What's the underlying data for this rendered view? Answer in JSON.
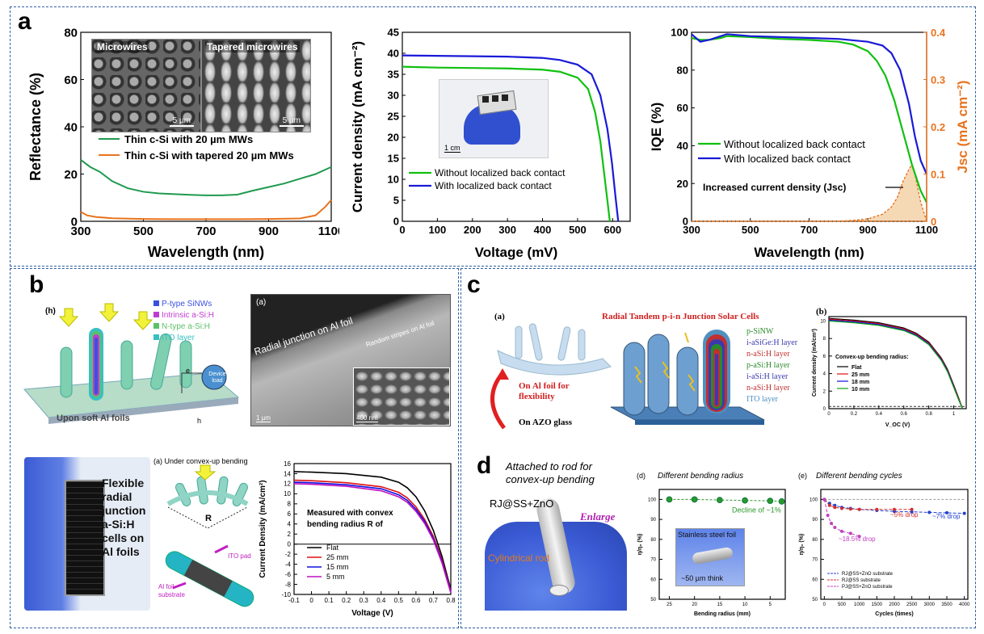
{
  "labels": {
    "a": "a",
    "b": "b",
    "c": "c",
    "d": "d"
  },
  "panel_a": {
    "inset_left": "Microwires",
    "inset_right": "Tapered microwires",
    "scale": "5 µm",
    "inset_photo_scale": "1 cm"
  },
  "panel_b": {
    "h_label": "(h)",
    "legend": [
      "P-type SiNWs",
      "Intrinsic a-Si:H",
      "N-type a-Si:H",
      "ITO layer"
    ],
    "legend_colors": [
      "#3b4fe0",
      "#c03cd0",
      "#5cc06a",
      "#38c0c0"
    ],
    "device_load": "Device load",
    "e_label": "e",
    "h2_label": "h",
    "soft_al": "Upon soft Al foils",
    "sem_label": "(a)",
    "sem_text1": "Radial junction on Al foil",
    "sem_text2": "Random stripes on Al foil",
    "sem_scale1": "1 µm",
    "sem_scale2": "400 nm",
    "photo_text": [
      "Flexible",
      "radial",
      "junction",
      "a-Si:H",
      "cells on",
      "Al foils"
    ],
    "bend_title": "(a) Under convex-up bending",
    "bend_R": "R",
    "ito_pad": "ITO pad",
    "al_sub": [
      "Al foil",
      "substrate"
    ]
  },
  "panel_c": {
    "label_a": "(a)",
    "title": "Radial Tandem p-i-n Junction Solar Cells",
    "layers": [
      "p-SiNW",
      "i-aSiGe:H layer",
      "n-aSi:H layer",
      "p-aSi:H layer",
      "i-aSi:H layer",
      "n-aSi:H layer",
      "ITO layer"
    ],
    "layer_colors": [
      "#2a8a2a",
      "#3a3ab0",
      "#c03030",
      "#2a8a2a",
      "#3a3ab0",
      "#c03030",
      "#5090c0"
    ],
    "on_al": [
      "On Al foil for",
      "flexibility"
    ],
    "on_azo": "On AZO glass",
    "label_b": "(b)"
  },
  "panel_d": {
    "attached": [
      "Attached to rod for",
      "convex-up bending"
    ],
    "rj": "RJ@SS+ZnO",
    "enlarge": "Enlarge",
    "rod": "Cylindrical rod",
    "inset_text1": "Stainless steel foil",
    "inset_text2": "~50 µm think"
  },
  "chart_data": [
    {
      "id": "a1",
      "type": "line",
      "title": "",
      "xlabel": "Wavelength (nm)",
      "ylabel": "Reflectance (%)",
      "xlim": [
        300,
        1100
      ],
      "ylim": [
        0,
        80
      ],
      "xticks": [
        300,
        500,
        700,
        900,
        1100
      ],
      "yticks": [
        0,
        20,
        40,
        60,
        80
      ],
      "series": [
        {
          "name": "Thin c-Si with 20 µm MWs",
          "color": "#1f9a4f",
          "x": [
            300,
            330,
            360,
            400,
            450,
            500,
            550,
            600,
            650,
            700,
            750,
            800,
            850,
            900,
            950,
            1000,
            1050,
            1100
          ],
          "y": [
            26,
            23,
            21,
            17,
            14,
            12.5,
            11.8,
            11.5,
            11.2,
            11,
            11,
            11.3,
            13,
            14.5,
            16,
            18,
            20,
            23
          ]
        },
        {
          "name": "Thin c-Si with tapered 20 µm MWs",
          "color": "#e8731e",
          "x": [
            300,
            320,
            350,
            400,
            500,
            600,
            700,
            800,
            900,
            1000,
            1050,
            1080,
            1100
          ],
          "y": [
            4,
            2.5,
            1.8,
            1.3,
            1,
            0.9,
            0.9,
            0.9,
            1,
            1.2,
            2.5,
            6,
            9
          ]
        }
      ]
    },
    {
      "id": "a2",
      "type": "line",
      "title": "",
      "xlabel": "Voltage (mV)",
      "ylabel": "Current density (mA cm⁻²)",
      "xlim": [
        0,
        650
      ],
      "ylim": [
        0,
        45
      ],
      "xticks": [
        0,
        100,
        200,
        300,
        400,
        500,
        600
      ],
      "yticks": [
        0,
        5,
        10,
        15,
        20,
        25,
        30,
        35,
        40,
        45
      ],
      "series": [
        {
          "name": "Without localized back contact",
          "color": "#10c010",
          "x": [
            0,
            100,
            200,
            300,
            400,
            450,
            500,
            530,
            550,
            565,
            575,
            585,
            592
          ],
          "y": [
            36.8,
            36.6,
            36.5,
            36.4,
            36.1,
            35.6,
            34.2,
            31.5,
            26,
            19,
            12,
            5,
            0
          ]
        },
        {
          "name": "With localized back contact",
          "color": "#1a1ad8",
          "x": [
            0,
            100,
            200,
            300,
            400,
            450,
            500,
            540,
            565,
            585,
            598,
            608,
            616
          ],
          "y": [
            39.5,
            39.4,
            39.3,
            39.2,
            38.9,
            38.4,
            37.3,
            35,
            30,
            22,
            14,
            6,
            0
          ]
        }
      ]
    },
    {
      "id": "a3",
      "type": "line",
      "title": "",
      "xlabel": "Wavelength (nm)",
      "ylabel": "IQE (%)",
      "y2label": "Jsc (mA cm⁻²)",
      "annotation": "Increased current density (Jsc)",
      "xlim": [
        300,
        1100
      ],
      "ylim": [
        0,
        100
      ],
      "y2lim": [
        0,
        0.4
      ],
      "xticks": [
        300,
        500,
        700,
        900,
        1100
      ],
      "yticks": [
        0,
        20,
        40,
        60,
        80,
        100
      ],
      "y2ticks": [
        0,
        0.1,
        0.2,
        0.3,
        0.4
      ],
      "series": [
        {
          "name": "Without localized back contact",
          "color": "#10c010",
          "x": [
            300,
            330,
            360,
            400,
            420,
            500,
            600,
            700,
            800,
            850,
            900,
            930,
            960,
            990,
            1020,
            1050,
            1080,
            1100
          ],
          "y": [
            97,
            96,
            96,
            97,
            98,
            97.5,
            96.5,
            96,
            95,
            93.5,
            90,
            85,
            77,
            64,
            47,
            30,
            16,
            10
          ]
        },
        {
          "name": "With localized back contact",
          "color": "#1a1ad8",
          "x": [
            300,
            330,
            360,
            400,
            420,
            500,
            600,
            700,
            800,
            900,
            950,
            980,
            1010,
            1040,
            1060,
            1080,
            1100
          ],
          "y": [
            99,
            95,
            96,
            98,
            99,
            98,
            97.5,
            97,
            96.5,
            95,
            93,
            89,
            80,
            62,
            45,
            32,
            25
          ]
        },
        {
          "name": "Jsc difference",
          "color": "#e8731e",
          "axis": "y2",
          "x": [
            300,
            500,
            800,
            850,
            900,
            950,
            980,
            1000,
            1020,
            1040,
            1050,
            1060,
            1080,
            1100
          ],
          "y": [
            0,
            0,
            0,
            0.002,
            0.005,
            0.015,
            0.03,
            0.05,
            0.085,
            0.11,
            0.12,
            0.1,
            0.04,
            0
          ]
        }
      ]
    },
    {
      "id": "b1",
      "type": "line",
      "title": "",
      "xlabel": "Voltage (V)",
      "ylabel": "Current Density (mA/cm²)",
      "annotation": [
        "Measured with convex",
        "bending radius R of"
      ],
      "xlim": [
        -0.1,
        0.8
      ],
      "ylim": [
        -10,
        16
      ],
      "xticks": [
        -0.1,
        0,
        0.1,
        0.2,
        0.3,
        0.4,
        0.5,
        0.6,
        0.7,
        0.8
      ],
      "yticks": [
        -10,
        -8,
        -6,
        -4,
        -2,
        0,
        2,
        4,
        6,
        8,
        10,
        12,
        14,
        16
      ],
      "series": [
        {
          "name": "Flat",
          "color": "#000000",
          "x": [
            -0.1,
            0,
            0.2,
            0.4,
            0.5,
            0.55,
            0.6,
            0.65,
            0.7,
            0.75,
            0.8
          ],
          "y": [
            14.4,
            14.3,
            14,
            13.3,
            12.3,
            11.2,
            9.4,
            6.6,
            2.7,
            -2.5,
            -9
          ]
        },
        {
          "name": "25 mm",
          "color": "#e01010",
          "x": [
            -0.1,
            0,
            0.2,
            0.4,
            0.5,
            0.55,
            0.6,
            0.65,
            0.7,
            0.75,
            0.8
          ],
          "y": [
            12.7,
            12.6,
            12.2,
            11.4,
            10.3,
            9.2,
            7.4,
            4.9,
            1.5,
            -3.2,
            -9.3
          ]
        },
        {
          "name": "15 mm",
          "color": "#1010e0",
          "x": [
            -0.1,
            0,
            0.2,
            0.4,
            0.5,
            0.55,
            0.6,
            0.65,
            0.7,
            0.75,
            0.8
          ],
          "y": [
            12.3,
            12.2,
            11.8,
            11,
            9.8,
            8.7,
            6.9,
            4.5,
            1.1,
            -3.5,
            -9.5
          ]
        },
        {
          "name": "5 mm",
          "color": "#c010c0",
          "x": [
            -0.1,
            0,
            0.2,
            0.4,
            0.5,
            0.55,
            0.6,
            0.65,
            0.7,
            0.75,
            0.8
          ],
          "y": [
            12,
            11.9,
            11.5,
            10.6,
            9.4,
            8.3,
            6.5,
            4.1,
            0.8,
            -3.8,
            -9.7
          ]
        }
      ]
    },
    {
      "id": "c1",
      "type": "line",
      "title": "",
      "xlabel": "V_OC (V)",
      "ylabel": "Current density (mA/cm²)",
      "legend_title": "Convex-up bending radius:",
      "xlim": [
        0,
        1.1
      ],
      "ylim": [
        0,
        10.5
      ],
      "xticks": [
        0,
        0.2,
        0.4,
        0.6,
        0.8,
        1.0
      ],
      "yticks": [
        0,
        2,
        4,
        6,
        8,
        10
      ],
      "series": [
        {
          "name": "Flat",
          "color": "#000000",
          "x": [
            0,
            0.2,
            0.4,
            0.6,
            0.7,
            0.8,
            0.9,
            0.95,
            1.0,
            1.04,
            1.07
          ],
          "y": [
            10.3,
            10.1,
            9.8,
            9.2,
            8.6,
            7.6,
            5.8,
            4.5,
            2.7,
            1.2,
            0
          ]
        },
        {
          "name": "25 mm",
          "color": "#e01010",
          "x": [
            0,
            0.2,
            0.4,
            0.6,
            0.7,
            0.8,
            0.9,
            0.95,
            1.0,
            1.04,
            1.07
          ],
          "y": [
            10.2,
            10,
            9.7,
            9.1,
            8.5,
            7.5,
            5.7,
            4.4,
            2.6,
            1.1,
            0
          ]
        },
        {
          "name": "18 mm",
          "color": "#1010e0",
          "x": [
            0,
            0.2,
            0.4,
            0.6,
            0.7,
            0.8,
            0.9,
            0.95,
            1.0,
            1.04,
            1.07
          ],
          "y": [
            10.1,
            9.9,
            9.6,
            9,
            8.4,
            7.4,
            5.6,
            4.3,
            2.5,
            1,
            0
          ]
        },
        {
          "name": "10 mm",
          "color": "#10a010",
          "x": [
            0,
            0.2,
            0.4,
            0.6,
            0.7,
            0.8,
            0.9,
            0.95,
            1.0,
            1.04,
            1.07
          ],
          "y": [
            10,
            9.8,
            9.5,
            8.9,
            8.3,
            7.3,
            5.5,
            4.2,
            2.4,
            1,
            0
          ]
        }
      ]
    },
    {
      "id": "d1",
      "type": "scatter",
      "panel_label": "(d)",
      "title": "Different  bending radius",
      "xlabel": "Bending radius (mm)",
      "ylabel": "η/η₀ (%)",
      "annotation": "Decline of ~1%",
      "xlim": [
        27,
        2
      ],
      "ylim": [
        50,
        105
      ],
      "xticks": [
        25,
        20,
        15,
        10,
        5
      ],
      "yticks": [
        50,
        60,
        70,
        80,
        90,
        100
      ],
      "series": [
        {
          "name": "RJ@SS+ZnO",
          "color": "#2a9a2a",
          "x": [
            25,
            20,
            15,
            10,
            5,
            2.7
          ],
          "y": [
            100,
            100,
            99.7,
            99.5,
            99.3,
            99
          ]
        }
      ]
    },
    {
      "id": "d2",
      "type": "line",
      "panel_label": "(e)",
      "title": "Different  bending cycles",
      "xlabel": "Cycles (times)",
      "ylabel": "η/η₀ (%)",
      "annotations": [
        "~5% drop",
        "~7% drop",
        "~18.5% drop"
      ],
      "xlim": [
        -100,
        4100
      ],
      "ylim": [
        50,
        105
      ],
      "xticks": [
        0,
        500,
        1000,
        1500,
        2000,
        2500,
        3000,
        3500,
        4000
      ],
      "yticks": [
        50,
        60,
        70,
        80,
        90,
        100
      ],
      "series": [
        {
          "name": "RJ@SS+ZnO substrate",
          "color": "#2040d0",
          "x": [
            0,
            150,
            300,
            500,
            750,
            1000,
            1500,
            2000,
            2500,
            3000,
            3500,
            4000
          ],
          "y": [
            100,
            98,
            97,
            96,
            95.5,
            95,
            94.5,
            94,
            93.8,
            93.5,
            93.3,
            93
          ]
        },
        {
          "name": "RJ@SS substrate",
          "color": "#d03030",
          "x": [
            0,
            150,
            300,
            500,
            750,
            1000,
            1500,
            2000,
            2500
          ],
          "y": [
            100,
            97,
            96,
            95.5,
            95.2,
            95,
            95,
            95,
            95
          ]
        },
        {
          "name": "PJ@SS+ZnO substrate",
          "color": "#c040c0",
          "x": [
            0,
            100,
            200,
            300,
            500,
            750,
            1000
          ],
          "y": [
            100,
            92,
            88,
            86,
            84,
            83,
            81.5
          ]
        }
      ]
    }
  ]
}
